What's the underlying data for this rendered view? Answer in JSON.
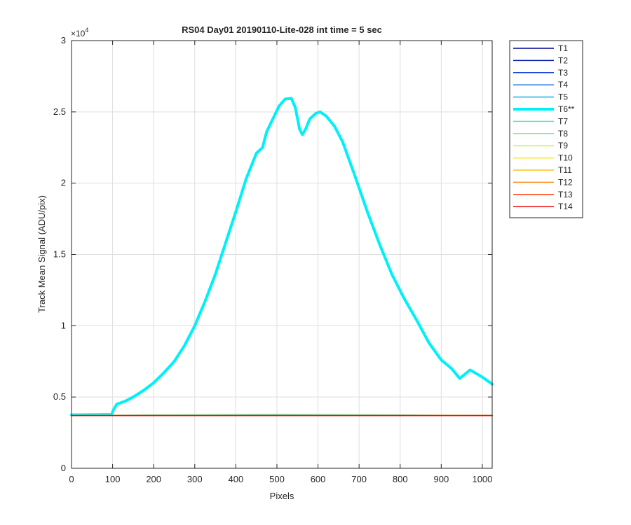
{
  "chart_data": {
    "type": "line",
    "title": "RS04 Day01 20190110-Lite-028 int time = 5 sec",
    "xlabel": "Pixels",
    "ylabel": "Track Mean Signal (ADU/pix)",
    "y_exponent_label": "×10",
    "y_exponent_power": "4",
    "xlim": [
      0,
      1024
    ],
    "ylim": [
      0,
      30000
    ],
    "x_ticks": [
      0,
      100,
      200,
      300,
      400,
      500,
      600,
      700,
      800,
      900,
      1000
    ],
    "x_tick_labels": [
      "0",
      "100",
      "200",
      "300",
      "400",
      "500",
      "600",
      "700",
      "800",
      "900",
      "1000"
    ],
    "y_ticks": [
      0,
      5000,
      10000,
      15000,
      20000,
      25000,
      30000
    ],
    "y_tick_labels": [
      "0",
      "0.5",
      "1",
      "1.5",
      "2",
      "2.5",
      "3"
    ],
    "grid": true,
    "legend_position": "outside-top-right",
    "series": [
      {
        "name": "T1",
        "color": "#00008f",
        "lw": 1.5,
        "values": [
          [
            0,
            3700
          ],
          [
            1024,
            3700
          ]
        ]
      },
      {
        "name": "T2",
        "color": "#0a1fb0",
        "lw": 1.5,
        "values": [
          [
            0,
            3700
          ],
          [
            1024,
            3700
          ]
        ]
      },
      {
        "name": "T3",
        "color": "#1a44d4",
        "lw": 1.5,
        "values": [
          [
            0,
            3700
          ],
          [
            1024,
            3700
          ]
        ]
      },
      {
        "name": "T4",
        "color": "#1f77e6",
        "lw": 1.5,
        "values": [
          [
            0,
            3700
          ],
          [
            1024,
            3700
          ]
        ]
      },
      {
        "name": "T5",
        "color": "#19aee8",
        "lw": 1.5,
        "values": [
          [
            0,
            3700
          ],
          [
            1024,
            3700
          ]
        ]
      },
      {
        "name": "T6**",
        "color": "#00f0f8",
        "lw": 4,
        "values": [
          [
            0,
            3750
          ],
          [
            50,
            3760
          ],
          [
            98,
            3780
          ],
          [
            102,
            4100
          ],
          [
            110,
            4500
          ],
          [
            130,
            4700
          ],
          [
            150,
            5000
          ],
          [
            175,
            5450
          ],
          [
            200,
            6000
          ],
          [
            225,
            6700
          ],
          [
            250,
            7500
          ],
          [
            275,
            8600
          ],
          [
            300,
            10000
          ],
          [
            325,
            11700
          ],
          [
            350,
            13600
          ],
          [
            375,
            15800
          ],
          [
            400,
            18000
          ],
          [
            425,
            20300
          ],
          [
            450,
            22100
          ],
          [
            465,
            22500
          ],
          [
            475,
            23600
          ],
          [
            490,
            24500
          ],
          [
            505,
            25400
          ],
          [
            520,
            25900
          ],
          [
            535,
            25950
          ],
          [
            545,
            25300
          ],
          [
            555,
            23800
          ],
          [
            562,
            23400
          ],
          [
            570,
            23800
          ],
          [
            580,
            24500
          ],
          [
            595,
            24900
          ],
          [
            605,
            25000
          ],
          [
            620,
            24700
          ],
          [
            640,
            24000
          ],
          [
            660,
            22900
          ],
          [
            690,
            20500
          ],
          [
            720,
            18000
          ],
          [
            750,
            15700
          ],
          [
            780,
            13600
          ],
          [
            810,
            11900
          ],
          [
            840,
            10400
          ],
          [
            870,
            8800
          ],
          [
            900,
            7600
          ],
          [
            925,
            7000
          ],
          [
            945,
            6300
          ],
          [
            970,
            6900
          ],
          [
            1000,
            6400
          ],
          [
            1024,
            5900
          ]
        ]
      },
      {
        "name": "T7",
        "color": "#55e6c0",
        "lw": 1.5,
        "values": [
          [
            0,
            3700
          ],
          [
            200,
            3740
          ],
          [
            500,
            3780
          ],
          [
            800,
            3740
          ],
          [
            1024,
            3700
          ]
        ]
      },
      {
        "name": "T8",
        "color": "#7cf583",
        "lw": 1.5,
        "values": [
          [
            0,
            3700
          ],
          [
            1024,
            3700
          ]
        ]
      },
      {
        "name": "T9",
        "color": "#c6f53a",
        "lw": 1.5,
        "values": [
          [
            0,
            3700
          ],
          [
            1024,
            3700
          ]
        ]
      },
      {
        "name": "T10",
        "color": "#ffee00",
        "lw": 1.5,
        "values": [
          [
            0,
            3700
          ],
          [
            1024,
            3700
          ]
        ]
      },
      {
        "name": "T11",
        "color": "#ffc21a",
        "lw": 1.5,
        "values": [
          [
            0,
            3700
          ],
          [
            1024,
            3700
          ]
        ]
      },
      {
        "name": "T12",
        "color": "#ff8c1a",
        "lw": 1.5,
        "values": [
          [
            0,
            3700
          ],
          [
            1024,
            3700
          ]
        ]
      },
      {
        "name": "T13",
        "color": "#ff4a14",
        "lw": 1.5,
        "values": [
          [
            0,
            3700
          ],
          [
            1024,
            3700
          ]
        ]
      },
      {
        "name": "T14",
        "color": "#e60d0d",
        "lw": 1.5,
        "values": [
          [
            0,
            3700
          ],
          [
            1024,
            3700
          ]
        ]
      }
    ]
  }
}
